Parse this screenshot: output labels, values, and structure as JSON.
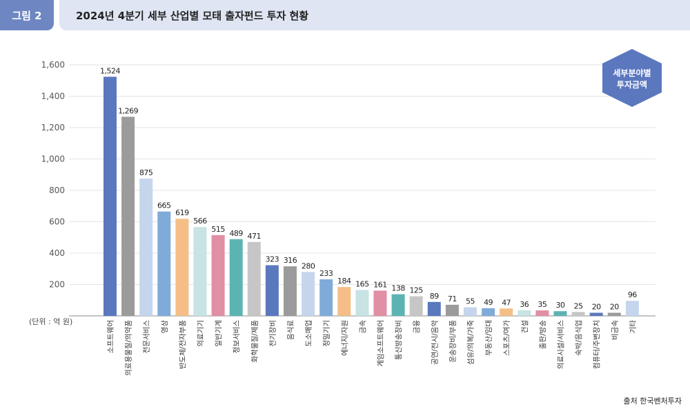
{
  "header": {
    "figure_tag": "그림 2",
    "title": "2024년 4분기 세부 산업별 모태 출자펀드 투자 현황"
  },
  "unit_label": "(단위 : 억 원)",
  "legend_badge": [
    "세부분야별",
    "투자금액"
  ],
  "source": "출처 한국벤처투자",
  "chart_data": {
    "type": "bar",
    "title": "2024년 4분기 세부 산업별 모태 출자펀드 투자 현황",
    "ylabel": "",
    "xlabel": "",
    "ylim": [
      0,
      1600
    ],
    "yticks": [
      200,
      400,
      600,
      800,
      1000,
      1200,
      1400,
      1600
    ],
    "ytick_labels": [
      "200",
      "400",
      "600",
      "800",
      "1,000",
      "1,200",
      "1,400",
      "1,600"
    ],
    "grid": true,
    "categories": [
      "소프트웨어",
      "의료용물질/의약품",
      "전문서비스",
      "영상",
      "반도체/전자부품",
      "의료기기",
      "일반기계",
      "정보서비스",
      "화학물질/제품",
      "전기장비",
      "음식료",
      "도소매업",
      "정밀기기",
      "에너지/자원",
      "금속",
      "게임소프트웨어",
      "통신방송장비",
      "금융",
      "공연/전시/음악",
      "운송장비/부품",
      "섬유/의복/가죽",
      "부동산/임대",
      "스포츠/여가",
      "건설",
      "출판/방송",
      "의료시설/서비스",
      "숙박/음식업",
      "컴퓨터/주변장치",
      "비금속",
      "기타"
    ],
    "values": [
      1524,
      1269,
      875,
      665,
      619,
      566,
      515,
      489,
      471,
      323,
      316,
      280,
      233,
      184,
      165,
      161,
      138,
      125,
      89,
      71,
      55,
      49,
      47,
      36,
      35,
      30,
      25,
      20,
      20,
      96
    ],
    "value_labels": [
      "1,524",
      "1,269",
      "875",
      "665",
      "619",
      "566",
      "515",
      "489",
      "471",
      "323",
      "316",
      "280",
      "233",
      "184",
      "165",
      "161",
      "138",
      "125",
      "89",
      "71",
      "55",
      "49",
      "47",
      "36",
      "35",
      "30",
      "25",
      "20",
      "20",
      "96"
    ],
    "colors": [
      "#5a78bd",
      "#9b9b9b",
      "#c5d5ec",
      "#7fabd9",
      "#f4be86",
      "#c7e3e3",
      "#e08fa5",
      "#5cb4b2",
      "#c6c6c6",
      "#5a78bd",
      "#9b9b9b",
      "#c5d5ec",
      "#7fabd9",
      "#f4be86",
      "#c7e3e3",
      "#e08fa5",
      "#5cb4b2",
      "#c6c6c6",
      "#5a78bd",
      "#9b9b9b",
      "#c5d5ec",
      "#7fabd9",
      "#f4be86",
      "#c7e3e3",
      "#e08fa5",
      "#5cb4b2",
      "#c6c6c6",
      "#5a78bd",
      "#9b9b9b",
      "#c5d5ec"
    ]
  }
}
